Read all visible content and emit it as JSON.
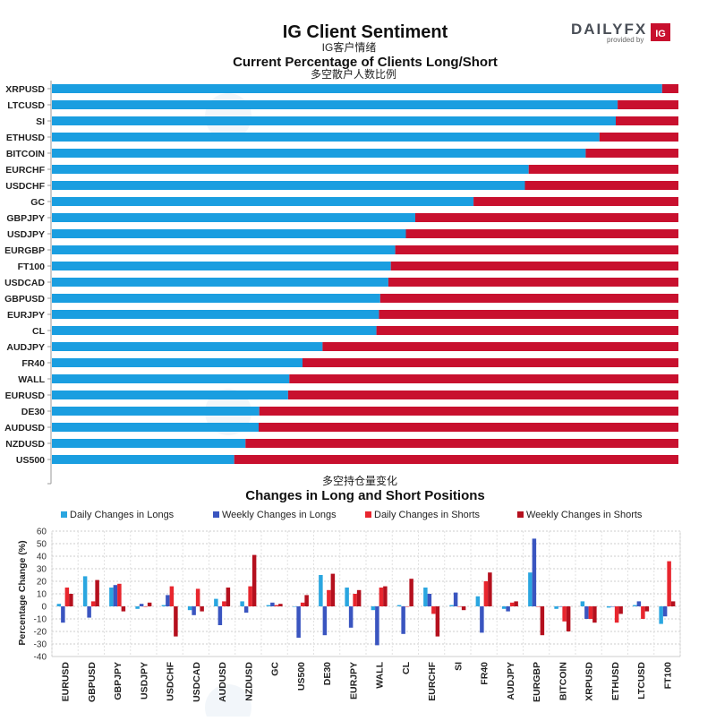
{
  "header": {
    "title": "IG Client Sentiment",
    "title_cn": "IG客户情绪",
    "logo_text": "DAILYFX",
    "logo_sub": "provided by",
    "logo_badge": "IG"
  },
  "colors": {
    "long": "#1a9ee0",
    "short": "#c8102e",
    "daily_long": "#2aa6e0",
    "weekly_long": "#3a55c0",
    "daily_short": "#e8262e",
    "weekly_short": "#b5101e",
    "grid": "#cccccc"
  },
  "chart_data": [
    {
      "type": "bar",
      "orientation": "horizontal",
      "stacked": true,
      "title": "Current Percentage of Clients Long/Short",
      "subtitle": "多空散户人数比例",
      "categories": [
        "XRPUSD",
        "LTCUSD",
        "SI",
        "ETHUSD",
        "BITCOIN",
        "EURCHF",
        "USDCHF",
        "GC",
        "GBPJPY",
        "USDJPY",
        "EURGBP",
        "FT100",
        "USDCAD",
        "GBPUSD",
        "EURJPY",
        "CL",
        "AUDJPY",
        "FR40",
        "WALL",
        "EURUSD",
        "DE30",
        "AUDUSD",
        "NZDUSD",
        "US500"
      ],
      "series": [
        {
          "key": "long",
          "values": [
            97.4,
            90.3,
            90.0,
            87.4,
            85.2,
            76.1,
            75.5,
            67.3,
            58.0,
            56.5,
            54.8,
            54.1,
            53.7,
            52.4,
            52.2,
            51.8,
            43.2,
            40.0,
            37.9,
            37.7,
            33.1,
            33.0,
            30.9,
            29.1
          ]
        },
        {
          "key": "short",
          "values": [
            2.6,
            9.7,
            10.0,
            12.6,
            14.8,
            23.9,
            24.5,
            32.7,
            42.0,
            43.5,
            45.2,
            45.9,
            46.3,
            47.6,
            47.8,
            48.2,
            56.8,
            60.0,
            62.1,
            62.3,
            66.9,
            67.0,
            69.1,
            70.9
          ]
        }
      ],
      "xlim": [
        0,
        100
      ]
    },
    {
      "type": "bar",
      "title": "Changes in Long and Short Positions",
      "subtitle": "多空持仓量变化",
      "ylabel": "Percentage Change (%)",
      "ylim": [
        -40,
        60
      ],
      "yticks": [
        -40,
        -30,
        -20,
        -10,
        0,
        10,
        20,
        30,
        40,
        50,
        60
      ],
      "grid": true,
      "legend_position": "top",
      "categories": [
        "EURUSD",
        "GBPUSD",
        "GBPJPY",
        "USDJPY",
        "USDCHF",
        "USDCAD",
        "AUDUSD",
        "NZDUSD",
        "GC",
        "US500",
        "DE30",
        "EURJPY",
        "WALL",
        "CL",
        "EURCHF",
        "SI",
        "FR40",
        "AUDJPY",
        "EURGBP",
        "BITCOIN",
        "XRPUSD",
        "ETHUSD",
        "LTCUSD",
        "FT100"
      ],
      "series": [
        {
          "name": "Daily Changes in Longs",
          "color_key": "daily_long",
          "values": [
            2,
            24,
            15,
            -2,
            1,
            -3,
            6,
            4,
            1,
            0,
            25,
            15,
            -3,
            1,
            15,
            1,
            8,
            -2,
            27,
            -2,
            4,
            -1,
            1,
            -14
          ]
        },
        {
          "name": "Weekly Changes in Longs",
          "color_key": "weekly_long",
          "values": [
            -13,
            -9,
            17,
            2,
            9,
            -7,
            -15,
            -5,
            3,
            -25,
            -23,
            -17,
            -31,
            -22,
            10,
            11,
            -21,
            -4,
            54,
            0,
            -10,
            0,
            4,
            -8
          ]
        },
        {
          "name": "Daily Changes in Shorts",
          "color_key": "daily_short",
          "values": [
            15,
            4,
            18,
            0,
            16,
            14,
            4,
            16,
            1,
            3,
            13,
            10,
            15,
            0,
            -6,
            0,
            20,
            3,
            0,
            -12,
            -10,
            -13,
            -10,
            36
          ]
        },
        {
          "name": "Weekly Changes in Shorts",
          "color_key": "weekly_short",
          "values": [
            10,
            21,
            -4,
            3,
            -24,
            -4,
            15,
            41,
            2,
            9,
            26,
            13,
            16,
            22,
            -24,
            -3,
            27,
            4,
            -23,
            -20,
            -13,
            -6,
            -4,
            4
          ]
        }
      ]
    }
  ]
}
